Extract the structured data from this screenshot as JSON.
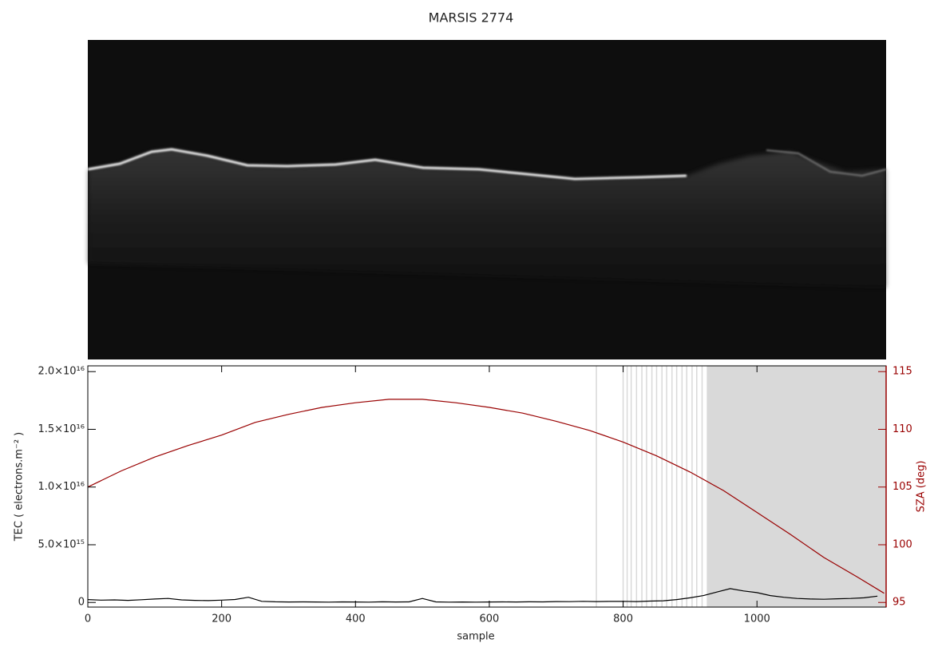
{
  "chart_data": {
    "type": "line",
    "title": "MARSIS 2774",
    "xlabel": "sample",
    "ylabel": "TEC ( electrons.m⁻² )",
    "y2label": "SZA (deg)",
    "xlim": [
      0,
      1193
    ],
    "xticks": [
      0,
      200,
      400,
      600,
      800,
      1000
    ],
    "ylim": [
      -400000000000000.0,
      2.05e+16
    ],
    "yticks": [
      0,
      {
        "value": 5000000000000000.0,
        "label": "5.0×10¹⁵"
      },
      {
        "value": 1e+16,
        "label": "1.0×10¹⁶"
      },
      {
        "value": 1.5e+16,
        "label": "1.5×10¹⁶"
      },
      {
        "value": 2e+16,
        "label": "2.0×10¹⁶"
      }
    ],
    "y2lim": [
      94.6,
      115.5
    ],
    "y2ticks": [
      95,
      100,
      105,
      110,
      115
    ],
    "shade_color": "#d9d9d9",
    "shaded_lines": [
      760,
      800,
      806,
      812,
      820,
      828,
      835,
      843,
      850,
      858,
      865,
      873,
      880,
      888,
      895,
      903,
      910,
      918
    ],
    "shaded_span": [
      925,
      1193
    ],
    "x": [
      0,
      20,
      40,
      60,
      80,
      100,
      120,
      140,
      160,
      180,
      200,
      220,
      240,
      260,
      280,
      300,
      320,
      340,
      360,
      380,
      400,
      420,
      440,
      460,
      480,
      500,
      520,
      540,
      560,
      580,
      600,
      620,
      640,
      660,
      680,
      700,
      720,
      740,
      760,
      780,
      800,
      820,
      840,
      860,
      880,
      900,
      920,
      940,
      960,
      980,
      1000,
      1020,
      1040,
      1060,
      1080,
      1100,
      1120,
      1140,
      1160,
      1180
    ],
    "series": [
      {
        "name": "TEC",
        "color": "#000000",
        "values": [
          250000000000000.0,
          200000000000000.0,
          220000000000000.0,
          180000000000000.0,
          240000000000000.0,
          300000000000000.0,
          350000000000000.0,
          220000000000000.0,
          180000000000000.0,
          160000000000000.0,
          200000000000000.0,
          260000000000000.0,
          450000000000000.0,
          100000000000000.0,
          60000000000000.0,
          40000000000000.0,
          50000000000000.0,
          40000000000000.0,
          30000000000000.0,
          50000000000000.0,
          40000000000000.0,
          30000000000000.0,
          60000000000000.0,
          40000000000000.0,
          50000000000000.0,
          350000000000000.0,
          50000000000000.0,
          30000000000000.0,
          40000000000000.0,
          30000000000000.0,
          40000000000000.0,
          50000000000000.0,
          40000000000000.0,
          60000000000000.0,
          50000000000000.0,
          80000000000000.0,
          70000000000000.0,
          100000000000000.0,
          80000000000000.0,
          90000000000000.0,
          100000000000000.0,
          80000000000000.0,
          120000000000000.0,
          150000000000000.0,
          250000000000000.0,
          400000000000000.0,
          600000000000000.0,
          900000000000000.0,
          1200000000000000.0,
          1000000000000000.0,
          850000000000000.0,
          600000000000000.0,
          450000000000000.0,
          350000000000000.0,
          300000000000000.0,
          280000000000000.0,
          320000000000000.0,
          350000000000000.0,
          400000000000000.0,
          550000000000000.0
        ]
      },
      {
        "name": "SZA",
        "color": "#990000",
        "axis": "y2",
        "x": [
          0,
          50,
          100,
          150,
          200,
          250,
          300,
          350,
          400,
          450,
          500,
          550,
          600,
          650,
          700,
          750,
          800,
          850,
          900,
          950,
          1000,
          1050,
          1100,
          1150,
          1190
        ],
        "values": [
          105.0,
          106.4,
          107.6,
          108.6,
          109.5,
          110.6,
          111.3,
          111.9,
          112.3,
          112.6,
          112.6,
          112.3,
          111.9,
          111.4,
          110.7,
          109.9,
          108.9,
          107.7,
          106.3,
          104.7,
          102.8,
          100.9,
          98.9,
          97.2,
          95.8
        ]
      }
    ]
  }
}
